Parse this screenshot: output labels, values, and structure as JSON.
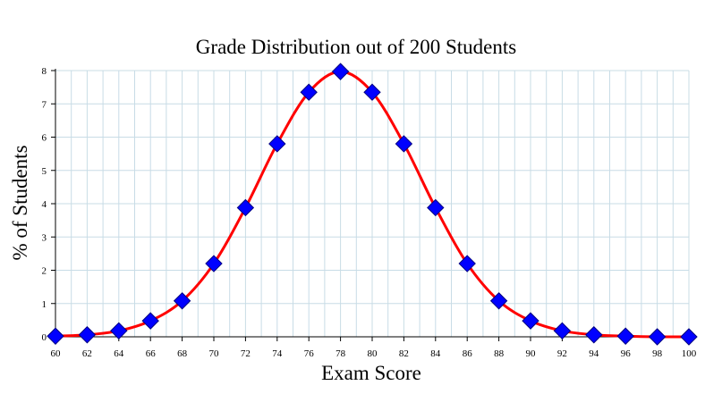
{
  "chart_data": {
    "type": "line",
    "title": "Grade Distribution out of 200 Students",
    "xlabel": "Exam Score",
    "ylabel": "% of Students",
    "xlim": [
      60,
      100
    ],
    "ylim": [
      0,
      8
    ],
    "x_ticks": [
      "60",
      "62",
      "64",
      "66",
      "68",
      "70",
      "72",
      "74",
      "76",
      "78",
      "80",
      "82",
      "84",
      "86",
      "88",
      "90",
      "92",
      "94",
      "96",
      "98",
      "100"
    ],
    "y_ticks": [
      "0",
      "1",
      "2",
      "3",
      "4",
      "5",
      "6",
      "7",
      "8"
    ],
    "grid": true,
    "legend": "none",
    "colors": {
      "line": "#ff0000",
      "marker": "#0000ff",
      "marker_edge": "#000080",
      "grid": "#c8dce6",
      "axis": "#000000"
    },
    "series": [
      {
        "x": [
          60,
          62,
          64,
          66,
          68,
          70,
          72,
          74,
          76,
          78,
          80,
          82,
          84,
          86,
          88,
          90,
          92,
          94,
          96,
          98,
          100
        ],
        "y": [
          0.02,
          0.06,
          0.18,
          0.48,
          1.08,
          2.2,
          3.88,
          5.8,
          7.35,
          7.97,
          7.35,
          5.8,
          3.88,
          2.2,
          1.08,
          0.48,
          0.18,
          0.06,
          0.02,
          0.0,
          0.0
        ]
      }
    ]
  }
}
